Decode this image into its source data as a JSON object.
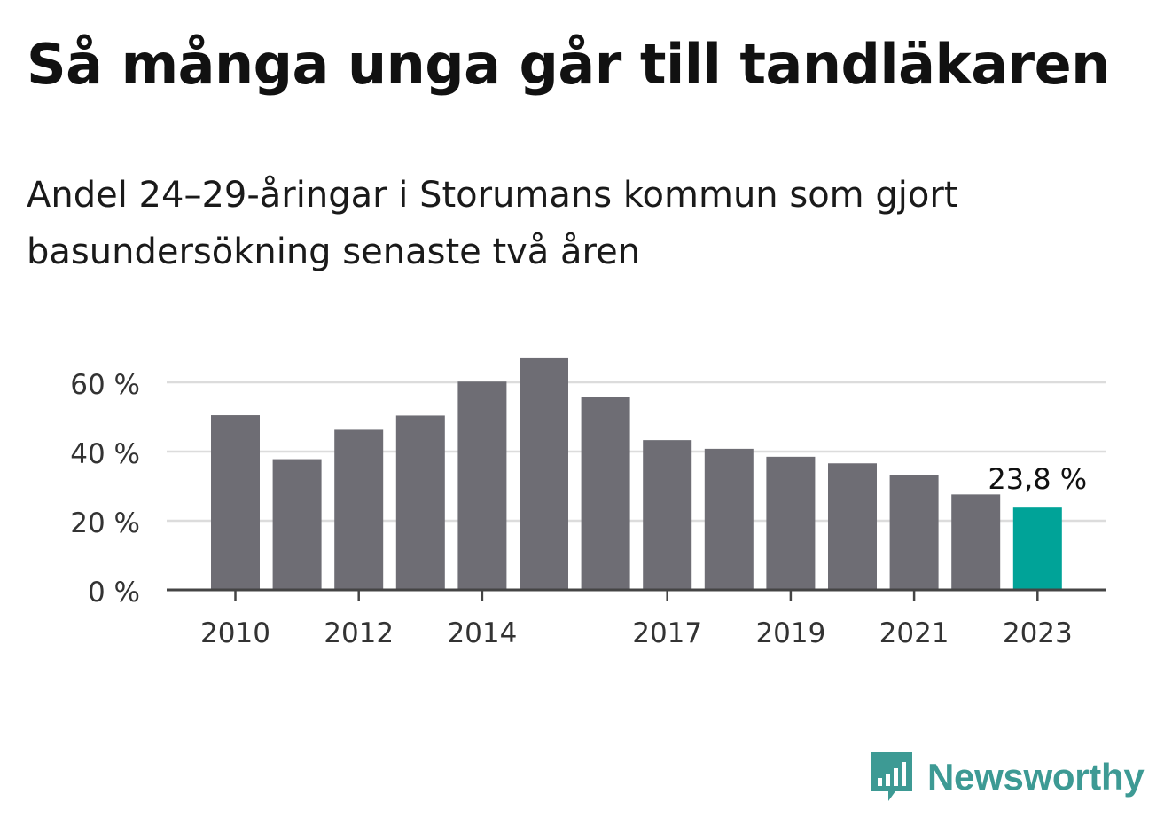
{
  "chart_data": {
    "type": "bar",
    "title": "Så många unga går till tandläkaren",
    "subtitle": "Andel 24–29-åringar i Storumans kommun som gjort basundersökning senaste två åren",
    "x": [
      2010,
      2011,
      2012,
      2013,
      2014,
      2015,
      2016,
      2017,
      2018,
      2019,
      2020,
      2021,
      2022,
      2023
    ],
    "values": [
      50.5,
      37.8,
      46.3,
      50.4,
      60.2,
      67.2,
      55.8,
      43.3,
      40.8,
      38.5,
      36.6,
      33.1,
      27.6,
      23.8
    ],
    "tick_labels": [
      "2010",
      "2012",
      "2014",
      "2017",
      "2019",
      "2021",
      "2023"
    ],
    "tick_years": [
      2010,
      2012,
      2014,
      2017,
      2019,
      2021,
      2023
    ],
    "y_ticks": [
      0,
      20,
      40,
      60
    ],
    "y_tick_labels": [
      "0 %",
      "20 %",
      "40 %",
      "60 %"
    ],
    "ylim": [
      0,
      70
    ],
    "grid": true,
    "highlight_index": 13,
    "highlight_label": "23,8 %",
    "colors": {
      "bar": "#6e6d74",
      "highlight": "#00a398",
      "grid": "#dcdcdc",
      "axis": "#444444"
    }
  },
  "brand": {
    "name": "Newsworthy",
    "logo_icon": "newsworthy-chat-bars-icon"
  }
}
